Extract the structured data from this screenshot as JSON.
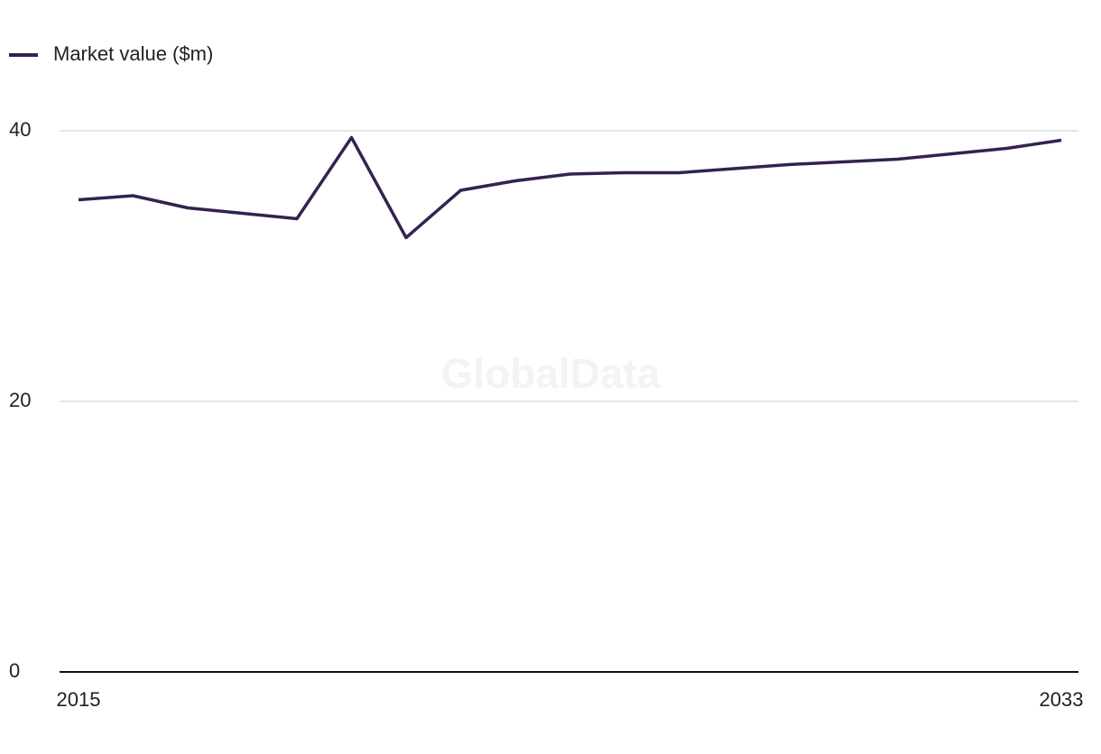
{
  "chart_data": {
    "type": "line",
    "watermark": "GlobalData",
    "x": [
      2015,
      2016,
      2017,
      2018,
      2019,
      2020,
      2021,
      2022,
      2023,
      2024,
      2025,
      2026,
      2027,
      2028,
      2029,
      2030,
      2031,
      2032,
      2033
    ],
    "series": [
      {
        "name": "Market value ($m)",
        "color": "#35224f",
        "values": [
          34.9,
          35.2,
          34.3,
          33.9,
          33.5,
          39.5,
          32.1,
          35.6,
          36.3,
          36.8,
          36.9,
          36.9,
          37.2,
          37.5,
          37.7,
          37.9,
          38.3,
          38.7,
          39.3
        ]
      }
    ],
    "xlim": [
      2015,
      2033
    ],
    "xticks": [
      2015,
      2033
    ],
    "ylim": [
      0,
      40
    ],
    "yticks": [
      0,
      20,
      40
    ],
    "grid": true,
    "legend": "top-left"
  }
}
